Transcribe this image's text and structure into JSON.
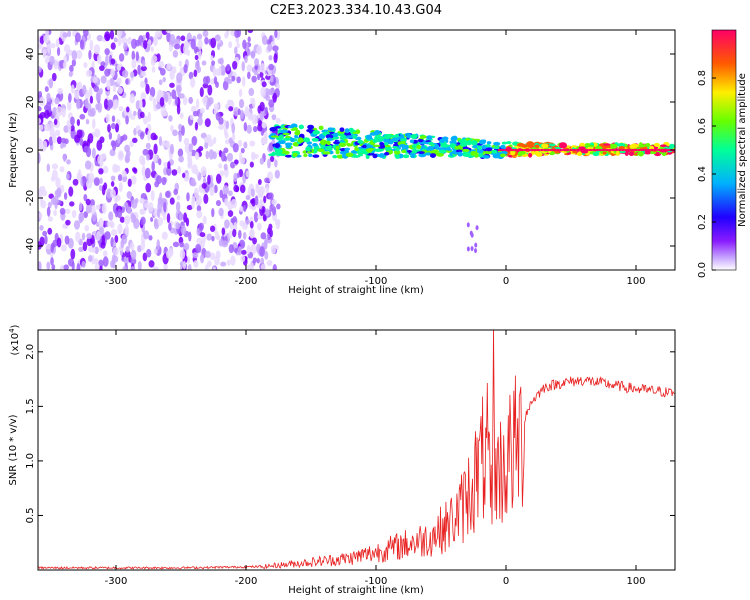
{
  "title": "C2E3.2023.334.10.43.G04",
  "chart_data": [
    {
      "type": "heatmap",
      "xlabel": "Height of straight line (km)",
      "ylabel": "Frequency (Hz)",
      "xlim": [
        -360,
        130
      ],
      "ylim": [
        -50,
        50
      ],
      "x_ticks": [
        -300,
        -200,
        -100,
        0,
        100
      ],
      "y_ticks": [
        -40,
        -20,
        0,
        20,
        40
      ],
      "colorbar": {
        "label": "Normalized spectral amplitude",
        "range": [
          0,
          1
        ],
        "ticks": [
          "0.0",
          "0.2",
          "0.4",
          "0.6",
          "0.8"
        ],
        "colors": [
          "#ffffff",
          "#b080ff",
          "#7a00ff",
          "#0000ff",
          "#00ccff",
          "#00ff66",
          "#ffee00",
          "#ff8800",
          "#ff0000",
          "#ff0066"
        ]
      },
      "regions": [
        {
          "name": "noise",
          "x_range": [
            -360,
            -175
          ],
          "freq_range": [
            -50,
            50
          ],
          "amplitude": 0.1
        },
        {
          "name": "signal",
          "x_range": [
            -180,
            130
          ],
          "center_freq_hz": 0,
          "half_width_hz_start": 7,
          "half_width_hz_end": 2,
          "amplitude": 0.5
        },
        {
          "name": "tail",
          "x_range": [
            -30,
            -22
          ],
          "freq_range": [
            -42,
            -30
          ],
          "amplitude": 0.15
        }
      ]
    },
    {
      "type": "line",
      "xlabel": "Height of straight line (km)",
      "ylabel": "SNR (10 * v/v)",
      "y_scale_label": "(x10",
      "y_scale_exp": "4",
      "y_scale_suffix": ")",
      "xlim": [
        -360,
        130
      ],
      "ylim": [
        0,
        2.2
      ],
      "x_ticks": [
        -300,
        -200,
        -100,
        0,
        100
      ],
      "y_ticks": [
        "0.5",
        "1.0",
        "1.5",
        "2.0"
      ],
      "series": [
        {
          "color": "#e82020",
          "x": [
            -360,
            -300,
            -250,
            -190,
            -150,
            -120,
            -100,
            -80,
            -60,
            -45,
            -35,
            -25,
            -15,
            -10,
            -5,
            0,
            10,
            20,
            30,
            45,
            60,
            80,
            100,
            130
          ],
          "y": [
            0.02,
            0.02,
            0.02,
            0.03,
            0.08,
            0.12,
            0.18,
            0.25,
            0.32,
            0.45,
            0.6,
            0.9,
            1.2,
            1.05,
            1.0,
            1.1,
            1.3,
            1.55,
            1.68,
            1.72,
            1.74,
            1.7,
            1.66,
            1.62
          ]
        }
      ]
    }
  ]
}
